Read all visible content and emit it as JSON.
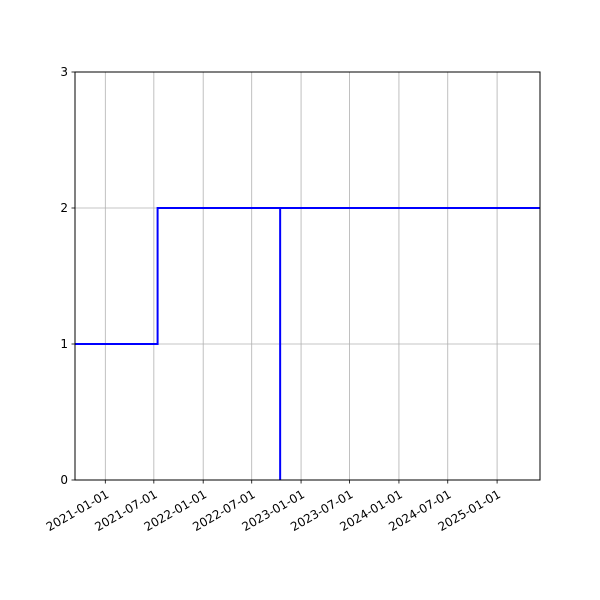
{
  "chart_data": {
    "type": "line",
    "drawstyle": "steps-post",
    "title": "",
    "xlabel": "",
    "ylabel": "",
    "xlim": [
      "2020-09-10",
      "2025-06-10"
    ],
    "ylim": [
      0,
      3
    ],
    "grid": true,
    "line_color": "#0000ff",
    "x_ticks": [
      "2021-01-01",
      "2021-07-01",
      "2022-01-01",
      "2022-07-01",
      "2023-01-01",
      "2023-07-01",
      "2024-01-01",
      "2024-07-01",
      "2025-01-01"
    ],
    "y_ticks": [
      0,
      1,
      2,
      3
    ],
    "series": [
      {
        "x": [
          "2020-09-10",
          "2021-07-15",
          "2022-10-15",
          "2022-10-15",
          "2025-06-10"
        ],
        "y": [
          1,
          2,
          0,
          2,
          2
        ]
      }
    ]
  }
}
